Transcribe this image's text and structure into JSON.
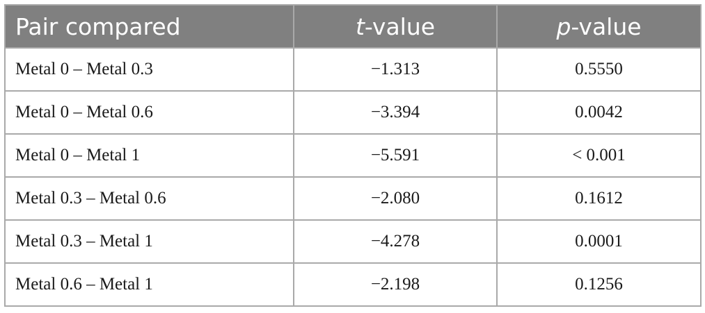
{
  "table": {
    "header": [
      "Pair compared",
      [
        "t",
        "-value"
      ],
      [
        "p",
        "-value"
      ]
    ],
    "rows": [
      [
        "Metal 0 – Metal 0.3",
        "−1.313",
        "0.5550"
      ],
      [
        "Metal 0 – Metal 0.6",
        "−3.394",
        "0.0042"
      ],
      [
        "Metal 0 – Metal 1",
        "−5.591",
        "< 0.001"
      ],
      [
        "Metal 0.3 – Metal 0.6",
        "−2.080",
        "0.1612"
      ],
      [
        "Metal 0.3 – Metal 1",
        "−4.278",
        "0.0001"
      ],
      [
        "Metal 0.6 – Metal 1",
        "−2.198",
        "0.1256"
      ]
    ]
  }
}
